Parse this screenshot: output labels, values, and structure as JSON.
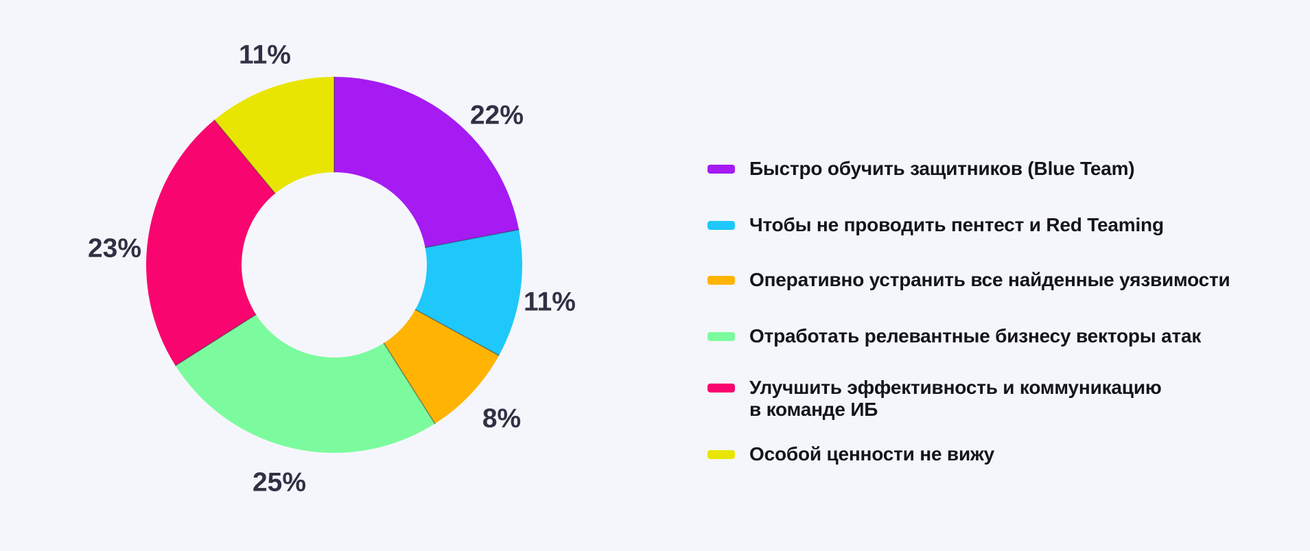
{
  "background_color": "#F5F6FB",
  "percent_label_color": "#2F3144",
  "legend_text_color": "#14151C",
  "chart_data": {
    "type": "pie",
    "subtype": "donut",
    "title": "",
    "start_angle": "top",
    "direction": "clockwise",
    "value_suffix": "%",
    "legend_position": "right",
    "series": [
      {
        "label": "Быстро обучить защитников (Blue Team)",
        "value": 22,
        "color": "#A51BF2",
        "percent_label": "22%"
      },
      {
        "label": "Чтобы не проводить пентест и Red Teaming",
        "value": 11,
        "color": "#1FC8FA",
        "percent_label": "11%"
      },
      {
        "label": "Оперативно устранить все найденные уязвимости",
        "value": 8,
        "color": "#FFB404",
        "percent_label": "8%"
      },
      {
        "label": "Отработать релевантные бизнесу векторы атак",
        "value": 25,
        "color": "#7CFB9E",
        "percent_label": "25%"
      },
      {
        "label": "Улучшить эффективность и коммуникацию\nв команде ИБ",
        "value": 23,
        "color": "#F9056F",
        "percent_label": "23%"
      },
      {
        "label": "Особой ценности не вижу",
        "value": 11,
        "color": "#E9E503",
        "percent_label": "11%"
      }
    ]
  }
}
